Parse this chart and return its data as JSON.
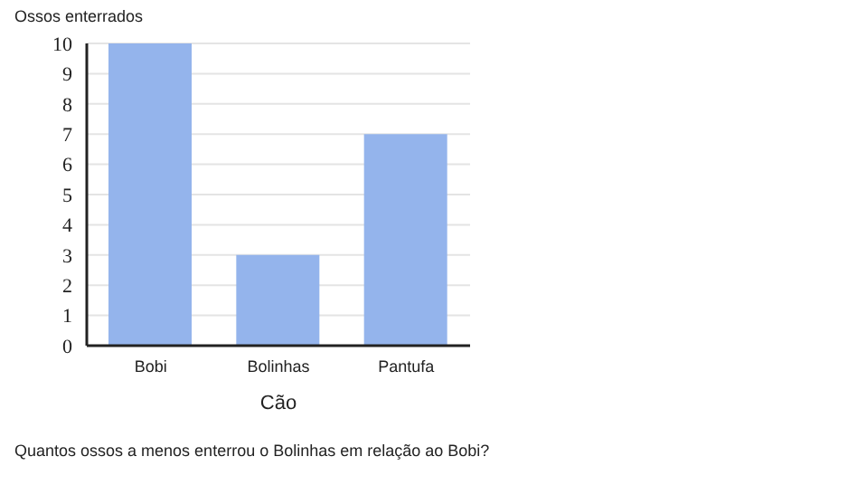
{
  "chart_data": {
    "type": "bar",
    "ylabel": "Ossos enterrados",
    "xlabel": "Cão",
    "categories": [
      "Bobi",
      "Bolinhas",
      "Pantufa"
    ],
    "values": [
      10,
      3,
      7
    ],
    "color": "#94b4ec",
    "ylim": [
      0,
      10
    ],
    "yticks": [
      0,
      1,
      2,
      3,
      4,
      5,
      6,
      7,
      8,
      9,
      10
    ],
    "grid": "y",
    "annotations": [
      "Quantos ossos a menos enterrou o Bolinhas em relação ao Bobi?"
    ]
  }
}
